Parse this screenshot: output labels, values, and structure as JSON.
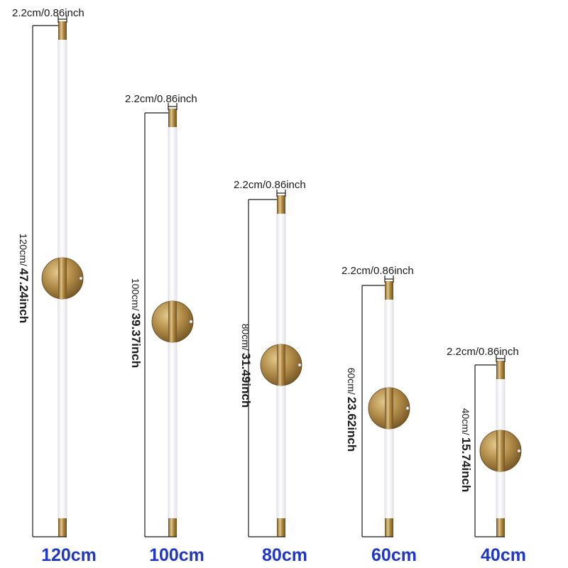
{
  "colors": {
    "size_label": "#1f37c9",
    "brass_dark": "#7a5a24",
    "brass_mid": "#b8924c",
    "brass_light": "#e8cf93",
    "tube": "#ffffff",
    "line": "#1a1a1a"
  },
  "lamps": [
    {
      "size_label": "120cm",
      "diameter_label": "2.2cm/0.86inch",
      "length_metric": "120cm/",
      "length_imperial": "47.24inch"
    },
    {
      "size_label": "100cm",
      "diameter_label": "2.2cm/0.86inch",
      "length_metric": "100cm/",
      "length_imperial": "39.37inch"
    },
    {
      "size_label": "80cm",
      "diameter_label": "2.2cm/0.86inch",
      "length_metric": "80cm/",
      "length_imperial": "31.49inch"
    },
    {
      "size_label": "60cm",
      "diameter_label": "2.2cm/0.86inch",
      "length_metric": "60cm/",
      "length_imperial": "23.62inch"
    },
    {
      "size_label": "40cm",
      "diameter_label": "2.2cm/0.86inch",
      "length_metric": "40cm/",
      "length_imperial": "15.74inch"
    }
  ]
}
